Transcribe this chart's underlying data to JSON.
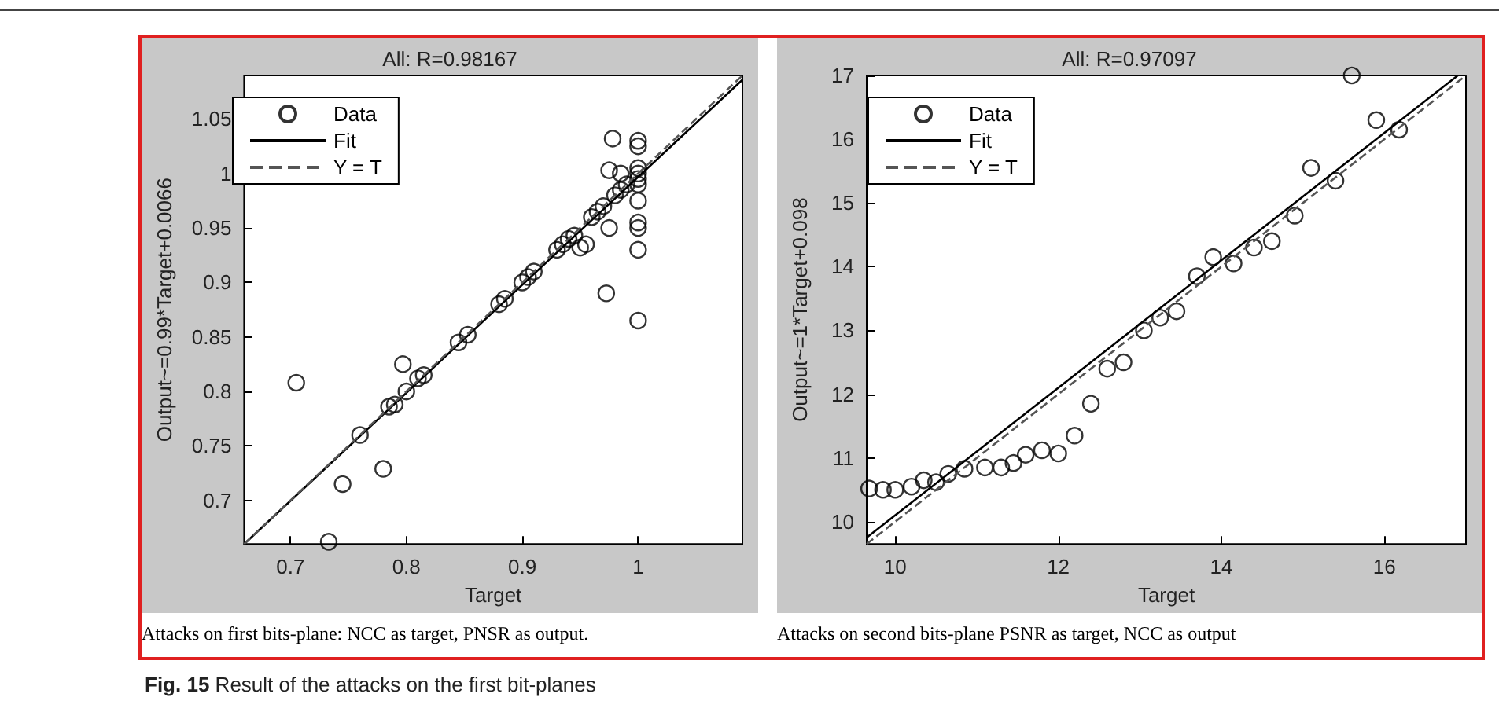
{
  "chart_data": [
    {
      "type": "scatter",
      "title": "All: R=0.98167",
      "xlabel": "Target",
      "ylabel": "Output~=0.99*Target+0.0066",
      "xlim": [
        0.66,
        1.09
      ],
      "ylim": [
        0.66,
        1.09
      ],
      "xticks": [
        0.7,
        0.8,
        0.9,
        1
      ],
      "yticks": [
        0.7,
        0.75,
        0.8,
        0.85,
        0.9,
        0.95,
        1,
        1.05
      ],
      "legend": "top left",
      "grid": false,
      "annotations": [
        "Attacks on first bits-plane: NCC as target, PNSR as output.",
        "Fig. 15 Result of the attacks on the first bit-planes"
      ],
      "series": [
        {
          "name": "Data",
          "color": "#000000",
          "marker": "circle",
          "x": [
            0.705,
            0.733,
            0.745,
            0.76,
            0.78,
            0.785,
            0.79,
            0.797,
            0.8,
            0.81,
            0.815,
            0.845,
            0.853,
            0.88,
            0.885,
            0.9,
            0.905,
            0.91,
            0.93,
            0.935,
            0.94,
            0.945,
            0.95,
            0.955,
            0.96,
            0.965,
            0.97,
            0.9725,
            0.975,
            0.975,
            0.978,
            0.98,
            0.985,
            0.985,
            0.99,
            1,
            1,
            1,
            1,
            1,
            1,
            1,
            1,
            1,
            1,
            1
          ],
          "values": [
            0.808,
            0.662,
            0.715,
            0.76,
            0.729,
            0.786,
            0.788,
            0.825,
            0.8,
            0.812,
            0.815,
            0.845,
            0.852,
            0.88,
            0.885,
            0.9,
            0.905,
            0.91,
            0.93,
            0.935,
            0.94,
            0.943,
            0.932,
            0.935,
            0.96,
            0.965,
            0.97,
            0.89,
            0.95,
            1.003,
            1.032,
            0.98,
            0.985,
            1.0,
            0.99,
            1.03,
            1.025,
            1.005,
            1.0,
            0.995,
            0.99,
            0.975,
            0.955,
            0.95,
            0.93,
            0.865
          ]
        },
        {
          "name": "Fit",
          "type": "line",
          "color": "#000000",
          "line_style": "solid",
          "x": [
            0.66,
            1.09
          ],
          "values": [
            0.66,
            1.086
          ]
        },
        {
          "name": "Y = T",
          "type": "line",
          "color": "#555555",
          "line_style": "dashed",
          "x": [
            0.66,
            1.09
          ],
          "values": [
            0.66,
            1.09
          ]
        }
      ]
    },
    {
      "type": "scatter",
      "title": "All: R=0.97097",
      "xlabel": "Target",
      "ylabel": "Output~=1*Target+0.098",
      "xlim": [
        9.65,
        17
      ],
      "ylim": [
        9.65,
        17
      ],
      "xticks": [
        10,
        12,
        14,
        16
      ],
      "yticks": [
        10,
        11,
        12,
        13,
        14,
        15,
        16,
        17
      ],
      "legend": "top left",
      "grid": false,
      "annotations": [
        "Attacks on second bits-plane PSNR as target, NCC as output"
      ],
      "series": [
        {
          "name": "Data",
          "color": "#000000",
          "marker": "circle",
          "x": [
            9.68,
            9.85,
            10.0,
            10.2,
            10.35,
            10.5,
            10.65,
            10.85,
            11.1,
            11.3,
            11.45,
            11.6,
            11.8,
            12.0,
            12.2,
            12.4,
            12.6,
            12.8,
            13.05,
            13.25,
            13.45,
            13.7,
            13.9,
            14.15,
            14.4,
            14.62,
            14.9,
            15.1,
            15.4,
            15.6,
            15.9,
            16.18
          ],
          "values": [
            10.52,
            10.5,
            10.5,
            10.55,
            10.65,
            10.62,
            10.75,
            10.83,
            10.85,
            10.85,
            10.92,
            11.05,
            11.12,
            11.07,
            11.35,
            11.85,
            12.4,
            12.5,
            13.0,
            13.2,
            13.3,
            13.85,
            14.15,
            14.05,
            14.3,
            14.4,
            14.8,
            15.55,
            15.35,
            17.0,
            16.3,
            16.15
          ]
        },
        {
          "name": "Fit",
          "type": "line",
          "color": "#000000",
          "line_style": "solid",
          "x": [
            9.65,
            16.9
          ],
          "values": [
            9.75,
            17.0
          ]
        },
        {
          "name": "Y = T",
          "type": "line",
          "color": "#555555",
          "line_style": "dashed",
          "x": [
            9.65,
            17
          ],
          "values": [
            9.65,
            17
          ]
        }
      ]
    }
  ]
}
